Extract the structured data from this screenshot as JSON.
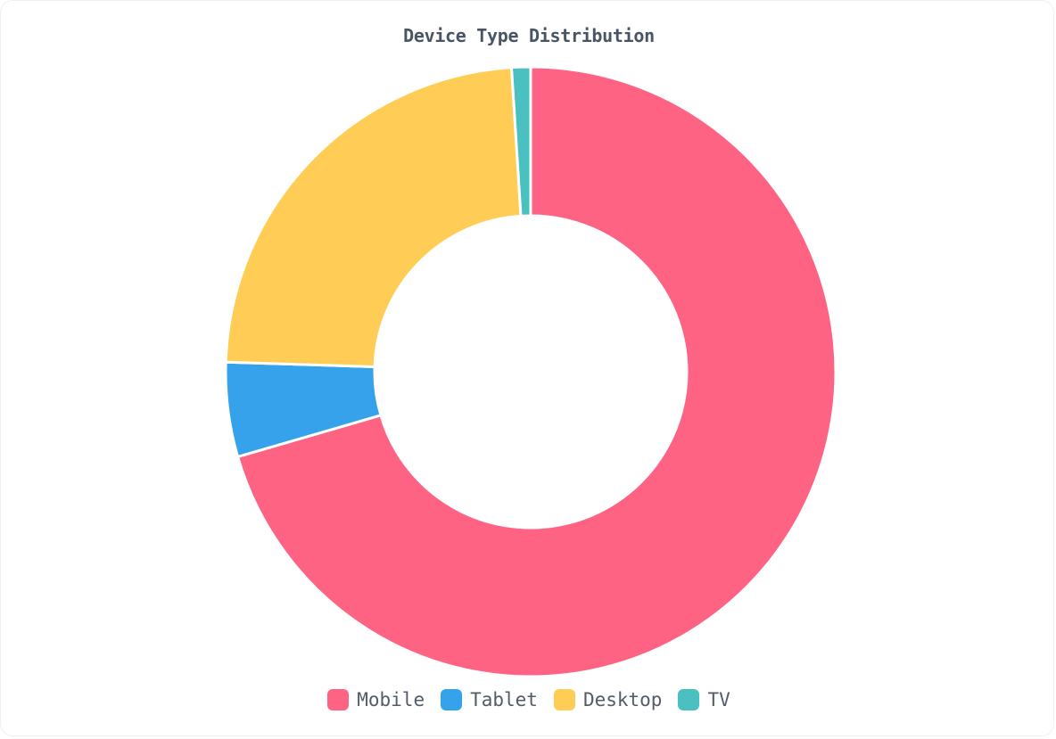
{
  "chart_data": {
    "type": "pie",
    "variant": "doughnut",
    "title": "Device Type Distribution",
    "categories": [
      "Mobile",
      "Tablet",
      "Desktop",
      "TV"
    ],
    "values": [
      70.5,
      5.0,
      23.5,
      1.0
    ],
    "colors": [
      "#ff6384",
      "#36a2eb",
      "#ffcd56",
      "#4bc0c0"
    ],
    "legend_position": "bottom",
    "start_angle": "top",
    "direction": "clockwise"
  }
}
